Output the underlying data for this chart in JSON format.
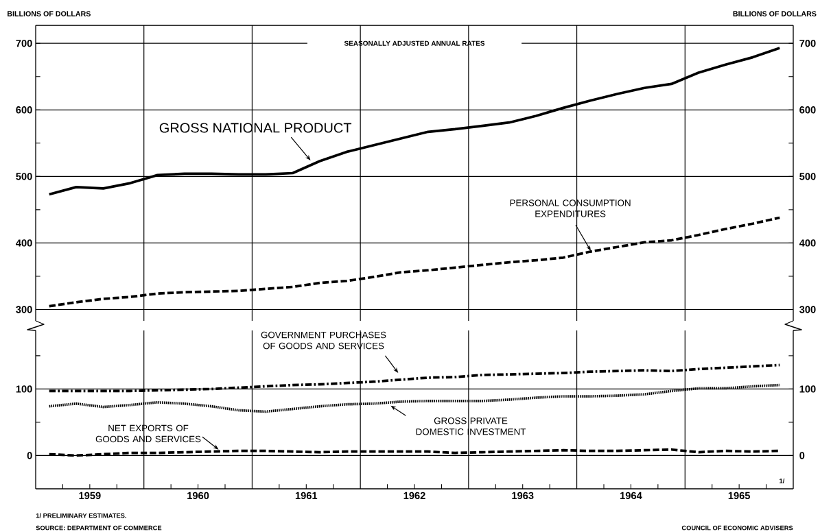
{
  "chart_data": [
    {
      "type": "line",
      "subtitle": "SEASONALLY ADJUSTED ANNUAL RATES",
      "ylabel": "BILLIONS OF DOLLARS",
      "y2label": "BILLIONS OF DOLLARS",
      "x": [
        1959.125,
        1959.375,
        1959.625,
        1959.875,
        1960.125,
        1960.375,
        1960.625,
        1960.875,
        1961.125,
        1961.375,
        1961.625,
        1961.875,
        1962.125,
        1962.375,
        1962.625,
        1962.875,
        1963.125,
        1963.375,
        1963.625,
        1963.875,
        1964.125,
        1964.375,
        1964.625,
        1964.875,
        1965.125,
        1965.375,
        1965.625,
        1965.875
      ],
      "xlim": [
        1959,
        1966
      ],
      "ylim": [
        283,
        727
      ],
      "yticks": [
        300,
        {
          "value": 350,
          "label": null
        },
        400,
        {
          "value": 450,
          "label": null
        },
        500,
        {
          "value": 550,
          "label": null
        },
        600,
        {
          "value": 650,
          "label": null
        },
        700
      ],
      "y2lim": [
        283,
        727
      ],
      "y2ticks": [
        300,
        {
          "value": 350,
          "label": null
        },
        400,
        {
          "value": 450,
          "label": null
        },
        500,
        {
          "value": 550,
          "label": null
        },
        600,
        {
          "value": 650,
          "label": null
        },
        700
      ],
      "tick_labels": "y",
      "grid": "y",
      "ref_lines": [
        {
          "axis": "x",
          "value": 1960
        },
        {
          "axis": "x",
          "value": 1961
        },
        {
          "axis": "x",
          "value": 1962
        },
        {
          "axis": "x",
          "value": 1963
        },
        {
          "axis": "x",
          "value": 1964
        },
        {
          "axis": "x",
          "value": 1965
        }
      ],
      "series": [
        {
          "name": "GROSS NATIONAL PRODUCT",
          "color": "#000000",
          "line_style": "solid",
          "values": [
            473,
            484,
            482,
            490,
            502,
            504,
            504,
            503,
            503,
            505,
            523,
            537,
            547,
            557,
            567,
            571,
            576,
            581,
            591,
            603,
            614,
            624,
            633,
            639,
            656,
            668,
            679,
            693
          ]
        },
        {
          "name": "PERSONAL CONSUMPTION EXPENDITURES",
          "color": "#000000",
          "line_style": "dashed",
          "values": [
            305,
            311,
            316,
            319,
            324,
            326,
            327,
            328,
            331,
            334,
            340,
            343,
            349,
            356,
            359,
            363,
            367,
            371,
            374,
            378,
            387,
            394,
            401,
            404,
            412,
            421,
            429,
            438
          ]
        }
      ]
    },
    {
      "type": "line",
      "annotations": [
        "1/",
        "1/ PRELIMINARY ESTIMATES.",
        "SOURCE: DEPARTMENT OF COMMERCE",
        "COUNCIL OF ECONOMIC ADVISERS"
      ],
      "x": [
        1959.125,
        1959.375,
        1959.625,
        1959.875,
        1960.125,
        1960.375,
        1960.625,
        1960.875,
        1961.125,
        1961.375,
        1961.625,
        1961.875,
        1962.125,
        1962.375,
        1962.625,
        1962.875,
        1963.125,
        1963.375,
        1963.625,
        1963.875,
        1964.125,
        1964.375,
        1964.625,
        1964.875,
        1965.125,
        1965.375,
        1965.625,
        1965.875
      ],
      "xlim": [
        1959,
        1966
      ],
      "ylim": [
        -50,
        188
      ],
      "xticks": [
        {
          "value": 1959.25,
          "label": null
        },
        {
          "value": 1959.5,
          "label": "1959"
        },
        {
          "value": 1959.75,
          "label": null
        },
        {
          "value": 1960.25,
          "label": null
        },
        {
          "value": 1960.5,
          "label": "1960"
        },
        {
          "value": 1960.75,
          "label": null
        },
        {
          "value": 1961.25,
          "label": null
        },
        {
          "value": 1961.5,
          "label": "1961"
        },
        {
          "value": 1961.75,
          "label": null
        },
        {
          "value": 1962.25,
          "label": null
        },
        {
          "value": 1962.5,
          "label": "1962"
        },
        {
          "value": 1962.75,
          "label": null
        },
        {
          "value": 1963.25,
          "label": null
        },
        {
          "value": 1963.5,
          "label": "1963"
        },
        {
          "value": 1963.75,
          "label": null
        },
        {
          "value": 1964.25,
          "label": null
        },
        {
          "value": 1964.5,
          "label": "1964"
        },
        {
          "value": 1964.75,
          "label": null
        },
        {
          "value": 1965.25,
          "label": null
        },
        {
          "value": 1965.5,
          "label": "1965"
        },
        {
          "value": 1965.75,
          "label": null
        }
      ],
      "yticks": [
        0,
        {
          "value": 50,
          "label": null
        },
        100,
        {
          "value": 150,
          "label": null
        }
      ],
      "y2lim": [
        -50,
        188
      ],
      "y2ticks": [
        0,
        {
          "value": 50,
          "label": null
        },
        100,
        {
          "value": 150,
          "label": null
        }
      ],
      "grid": "y",
      "ref_lines": [
        {
          "axis": "x",
          "value": 1960
        },
        {
          "axis": "x",
          "value": 1961
        },
        {
          "axis": "x",
          "value": 1962
        },
        {
          "axis": "x",
          "value": 1963
        },
        {
          "axis": "x",
          "value": 1964
        },
        {
          "axis": "x",
          "value": 1965
        }
      ],
      "series": [
        {
          "name": "GOVERNMENT PURCHASES OF GOODS AND SERVICES",
          "color": "#000000",
          "line_style": "dashdot",
          "values": [
            97,
            97,
            97,
            97,
            98,
            99,
            100,
            102,
            104,
            106,
            107,
            109,
            111,
            114,
            117,
            118,
            121,
            122,
            123,
            124,
            126,
            127,
            128,
            127,
            130,
            132,
            134,
            136
          ]
        },
        {
          "name": "GROSS PRIVATE DOMESTIC INVESTMENT",
          "color": "#000000",
          "line_style": "dotted",
          "values": [
            74,
            78,
            73,
            76,
            80,
            78,
            74,
            68,
            66,
            70,
            74,
            77,
            78,
            81,
            82,
            82,
            82,
            84,
            87,
            89,
            89,
            90,
            92,
            97,
            101,
            101,
            104,
            106
          ]
        },
        {
          "name": "NET EXPORTS OF GOODS AND SERVICES",
          "color": "#000000",
          "line_style": "dashed",
          "values": [
            2,
            0,
            2,
            4,
            4,
            5,
            6,
            7,
            7,
            6,
            5,
            6,
            6,
            6,
            6,
            4,
            5,
            6,
            7,
            8,
            7,
            7,
            8,
            9,
            5,
            7,
            6,
            7
          ]
        }
      ]
    }
  ]
}
